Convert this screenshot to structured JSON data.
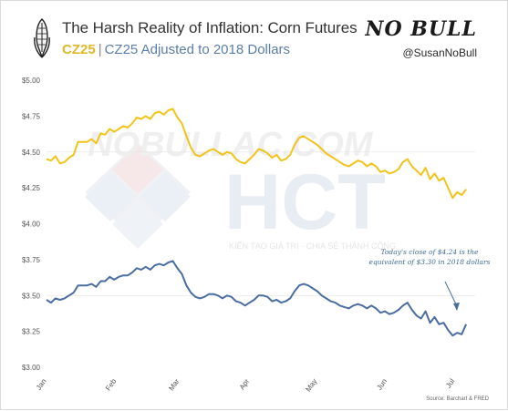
{
  "header": {
    "title": "The Harsh Reality of Inflation: Corn Futures",
    "subtitle_series1": "CZ25",
    "subtitle_sep": "|",
    "subtitle_series2": "CZ25 Adjusted to 2018 Dollars",
    "brand_logo": "NO BULL",
    "brand_handle": "@SusanNoBull"
  },
  "watermark": {
    "site": "NOBULLAC.COM",
    "logo": "HCT",
    "tagline": "KIẾN TẠO GIÁ TRỊ - CHIA SẺ THÀNH CÔNG"
  },
  "annotation": {
    "line1": "Today's close of $4.24 is the",
    "line2": "equivalent of $3.30 in 2018 dollars"
  },
  "source": "Source: Barchart & FRED",
  "colors": {
    "nominal": "#f0c419",
    "real": "#4a6ea0",
    "grid": "#e6e6e6",
    "axis_text": "#555555"
  },
  "chart_data": {
    "type": "line",
    "ylim": [
      3.0,
      5.0
    ],
    "yticks": [
      "$3.00",
      "$3.25",
      "$3.50",
      "$3.75",
      "$4.00",
      "$4.25",
      "$4.50",
      "$4.75",
      "$5.00"
    ],
    "xticks": [
      "Jan",
      "Feb",
      "Mar",
      "Apr",
      "May",
      "Jun",
      "Jul"
    ],
    "x_range_days": [
      0,
      190
    ],
    "series": [
      {
        "name": "CZ25",
        "color": "#f0c419",
        "x": [
          0,
          2,
          4,
          6,
          8,
          10,
          12,
          14,
          16,
          18,
          20,
          22,
          24,
          26,
          28,
          30,
          32,
          34,
          36,
          38,
          40,
          42,
          44,
          46,
          48,
          50,
          52,
          54,
          56,
          58,
          60,
          62,
          64,
          66,
          68,
          70,
          72,
          74,
          76,
          78,
          80,
          82,
          84,
          86,
          88,
          90,
          92,
          94,
          96,
          98,
          100,
          102,
          104,
          106,
          108,
          110,
          112,
          114,
          116,
          118,
          120,
          122,
          124,
          126,
          128,
          130,
          132,
          134,
          136,
          138,
          140,
          142,
          144,
          146,
          148,
          150,
          152,
          154,
          156,
          158,
          160,
          162,
          164,
          166,
          168,
          170,
          172,
          174,
          176,
          178,
          180,
          182,
          184,
          186
        ],
        "values": [
          4.45,
          4.44,
          4.47,
          4.42,
          4.43,
          4.46,
          4.48,
          4.57,
          4.57,
          4.57,
          4.59,
          4.56,
          4.63,
          4.62,
          4.66,
          4.64,
          4.66,
          4.68,
          4.67,
          4.7,
          4.74,
          4.73,
          4.75,
          4.73,
          4.77,
          4.78,
          4.76,
          4.79,
          4.8,
          4.74,
          4.7,
          4.61,
          4.53,
          4.48,
          4.47,
          4.49,
          4.51,
          4.52,
          4.5,
          4.48,
          4.5,
          4.49,
          4.45,
          4.43,
          4.42,
          4.45,
          4.48,
          4.52,
          4.51,
          4.49,
          4.46,
          4.48,
          4.44,
          4.45,
          4.48,
          4.55,
          4.6,
          4.61,
          4.59,
          4.57,
          4.55,
          4.52,
          4.49,
          4.47,
          4.45,
          4.43,
          4.41,
          4.4,
          4.42,
          4.44,
          4.43,
          4.4,
          4.42,
          4.4,
          4.36,
          4.37,
          4.35,
          4.36,
          4.38,
          4.43,
          4.45,
          4.4,
          4.37,
          4.34,
          4.39,
          4.31,
          4.35,
          4.3,
          4.32,
          4.25,
          4.18,
          4.22,
          4.2,
          4.24
        ]
      },
      {
        "name": "CZ25 Adjusted to 2018 Dollars",
        "color": "#4a6ea0",
        "x": [
          0,
          2,
          4,
          6,
          8,
          10,
          12,
          14,
          16,
          18,
          20,
          22,
          24,
          26,
          28,
          30,
          32,
          34,
          36,
          38,
          40,
          42,
          44,
          46,
          48,
          50,
          52,
          54,
          56,
          58,
          60,
          62,
          64,
          66,
          68,
          70,
          72,
          74,
          76,
          78,
          80,
          82,
          84,
          86,
          88,
          90,
          92,
          94,
          96,
          98,
          100,
          102,
          104,
          106,
          108,
          110,
          112,
          114,
          116,
          118,
          120,
          122,
          124,
          126,
          128,
          130,
          132,
          134,
          136,
          138,
          140,
          142,
          144,
          146,
          148,
          150,
          152,
          154,
          156,
          158,
          160,
          162,
          164,
          166,
          168,
          170,
          172,
          174,
          176,
          178,
          180,
          182,
          184,
          186
        ],
        "values": [
          3.47,
          3.45,
          3.48,
          3.47,
          3.48,
          3.5,
          3.52,
          3.57,
          3.57,
          3.57,
          3.58,
          3.56,
          3.6,
          3.6,
          3.63,
          3.61,
          3.63,
          3.64,
          3.64,
          3.66,
          3.69,
          3.68,
          3.7,
          3.68,
          3.71,
          3.72,
          3.71,
          3.73,
          3.74,
          3.69,
          3.65,
          3.57,
          3.52,
          3.49,
          3.48,
          3.49,
          3.51,
          3.51,
          3.5,
          3.48,
          3.5,
          3.49,
          3.46,
          3.45,
          3.43,
          3.45,
          3.47,
          3.5,
          3.5,
          3.49,
          3.46,
          3.47,
          3.45,
          3.46,
          3.48,
          3.53,
          3.57,
          3.58,
          3.57,
          3.55,
          3.53,
          3.5,
          3.48,
          3.46,
          3.45,
          3.43,
          3.42,
          3.41,
          3.43,
          3.44,
          3.43,
          3.41,
          3.43,
          3.41,
          3.38,
          3.39,
          3.37,
          3.38,
          3.4,
          3.43,
          3.45,
          3.4,
          3.36,
          3.34,
          3.39,
          3.31,
          3.35,
          3.3,
          3.31,
          3.26,
          3.22,
          3.24,
          3.23,
          3.3
        ]
      }
    ]
  }
}
